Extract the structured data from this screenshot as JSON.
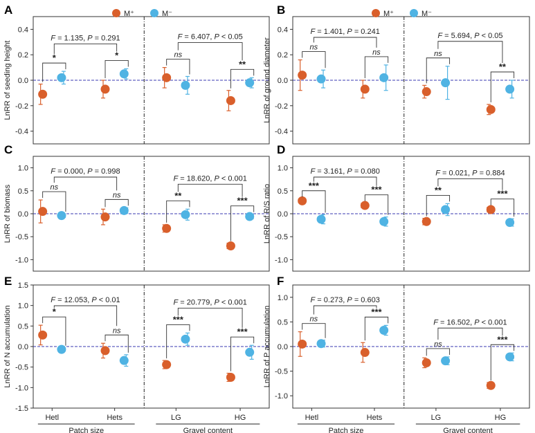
{
  "colors": {
    "m_plus": "#d95f2b",
    "m_minus": "#4fb3e3",
    "zero_line": "#3a3ab0",
    "axis": "#333333"
  },
  "legend": {
    "m_plus_label": "M⁺",
    "m_minus_label": "M⁻"
  },
  "group_labels": {
    "patch_size": "Patch size",
    "gravel_content": "Gravel content"
  },
  "categories": [
    "Hetl",
    "Hets",
    "LG",
    "HG"
  ],
  "chart_data": [
    {
      "type": "scatter",
      "panel": "A",
      "ylabel": "LnRR of seeding height",
      "ylim": [
        -0.5,
        0.5
      ],
      "yticks": [
        "0.4",
        "0.2",
        "0.0",
        "-0.2",
        "-0.4"
      ],
      "show_legend": true,
      "show_xlabels": false,
      "series": [
        {
          "name": "M⁺",
          "values": [
            -0.11,
            -0.07,
            0.02,
            -0.16
          ],
          "errors": [
            0.08,
            0.07,
            0.08,
            0.08
          ]
        },
        {
          "name": "M⁻",
          "values": [
            0.02,
            0.05,
            -0.04,
            -0.02
          ],
          "errors": [
            0.05,
            0.04,
            0.07,
            0.04
          ]
        }
      ],
      "stats": [
        {
          "f": "1.135",
          "p": "P = 0.291",
          "bars": [
            "*",
            "*"
          ]
        },
        {
          "f": "6.407",
          "p": "P < 0.05",
          "bars": [
            "ns",
            "**"
          ]
        }
      ]
    },
    {
      "type": "scatter",
      "panel": "B",
      "ylabel": "LnRR of ground diameter",
      "ylim": [
        -0.5,
        0.5
      ],
      "yticks": [
        "0.4",
        "0.2",
        "0.0",
        "-0.2",
        "-0.4"
      ],
      "show_legend": true,
      "show_xlabels": false,
      "series": [
        {
          "name": "M⁺",
          "values": [
            0.04,
            -0.07,
            -0.09,
            -0.23
          ],
          "errors": [
            0.12,
            0.07,
            0.05,
            0.04
          ]
        },
        {
          "name": "M⁻",
          "values": [
            0.01,
            0.02,
            -0.02,
            -0.07
          ],
          "errors": [
            0.07,
            0.1,
            0.13,
            0.07
          ]
        }
      ],
      "stats": [
        {
          "f": "1.401",
          "p": "P = 0.241",
          "bars": [
            "ns",
            "ns"
          ]
        },
        {
          "f": "5.694",
          "p": "P < 0.05",
          "bars": [
            "ns",
            "**"
          ]
        }
      ]
    },
    {
      "type": "scatter",
      "panel": "C",
      "ylabel": "LnRR of biomass",
      "ylim": [
        -1.25,
        1.25
      ],
      "yticks": [
        "1.0",
        "0.5",
        "0.0",
        "-0.5",
        "-1.0"
      ],
      "show_legend": false,
      "show_xlabels": false,
      "series": [
        {
          "name": "M⁺",
          "values": [
            0.05,
            -0.07,
            -0.32,
            -0.7
          ],
          "errors": [
            0.25,
            0.17,
            0.08,
            0.06
          ]
        },
        {
          "name": "M⁻",
          "values": [
            -0.04,
            0.07,
            -0.02,
            -0.06
          ],
          "errors": [
            0.04,
            0.06,
            0.12,
            0.05
          ]
        }
      ],
      "stats": [
        {
          "f": "0.000",
          "p": "P = 0.998",
          "bars": [
            "ns",
            "ns"
          ]
        },
        {
          "f": "18.620",
          "p": "P < 0.001",
          "bars": [
            "**",
            "***"
          ]
        }
      ]
    },
    {
      "type": "scatter",
      "panel": "D",
      "ylabel": "LnRR of R/S ratio",
      "ylim": [
        -1.25,
        1.25
      ],
      "yticks": [
        "1.0",
        "0.5",
        "0.0",
        "-0.5",
        "-1.0"
      ],
      "show_legend": false,
      "show_xlabels": false,
      "series": [
        {
          "name": "M⁺",
          "values": [
            0.28,
            0.18,
            -0.17,
            0.09
          ],
          "errors": [
            0.04,
            0.05,
            0.07,
            0.05
          ]
        },
        {
          "name": "M⁻",
          "values": [
            -0.12,
            -0.17,
            0.09,
            -0.19
          ],
          "errors": [
            0.1,
            0.1,
            0.13,
            0.08
          ]
        }
      ],
      "stats": [
        {
          "f": "3.161",
          "p": "P = 0.080",
          "bars": [
            "***",
            "***"
          ]
        },
        {
          "f": "0.021",
          "p": "P = 0.884",
          "bars": [
            "**",
            "***"
          ]
        }
      ]
    },
    {
      "type": "scatter",
      "panel": "E",
      "ylabel": "LnRR of N accumulation",
      "ylim": [
        -1.5,
        1.5
      ],
      "yticks": [
        "1.5",
        "1.0",
        "0.5",
        "0.0",
        "-0.5",
        "-1.0",
        "-1.5"
      ],
      "show_legend": false,
      "show_xlabels": true,
      "series": [
        {
          "name": "M⁺",
          "values": [
            0.28,
            -0.1,
            -0.44,
            -0.75
          ],
          "errors": [
            0.24,
            0.18,
            0.1,
            0.1
          ]
        },
        {
          "name": "M⁻",
          "values": [
            -0.07,
            -0.34,
            0.18,
            -0.14
          ],
          "errors": [
            0.04,
            0.14,
            0.15,
            0.17
          ]
        }
      ],
      "stats": [
        {
          "f": "12.053",
          "p": "P < 0.01",
          "bars": [
            "*",
            "ns"
          ]
        },
        {
          "f": "20.779",
          "p": "P < 0.001",
          "bars": [
            "***",
            "***"
          ]
        }
      ]
    },
    {
      "type": "scatter",
      "panel": "F",
      "ylabel": "LnRR of P accumulation",
      "ylim": [
        -1.25,
        1.25
      ],
      "yticks": [
        "1.0",
        "0.5",
        "0.0",
        "-0.5",
        "-1.0"
      ],
      "show_legend": false,
      "show_xlabels": true,
      "series": [
        {
          "name": "M⁺",
          "values": [
            0.05,
            -0.12,
            -0.33,
            -0.79
          ],
          "errors": [
            0.25,
            0.2,
            0.1,
            0.06
          ]
        },
        {
          "name": "M⁻",
          "values": [
            0.06,
            0.33,
            -0.29,
            -0.21
          ],
          "errors": [
            0.07,
            0.1,
            0.08,
            0.08
          ]
        }
      ],
      "stats": [
        {
          "f": "0.273",
          "p": "P = 0.603",
          "bars": [
            "ns",
            "***"
          ]
        },
        {
          "f": "16.502",
          "p": "P < 0.001",
          "bars": [
            "ns",
            "***"
          ]
        }
      ]
    }
  ]
}
